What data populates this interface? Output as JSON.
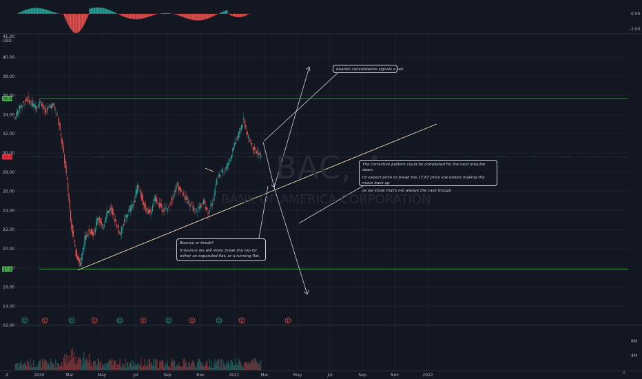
{
  "chart_data": {
    "type": "candlestick",
    "symbol": "BAC, 4",
    "company": "BANK OF AMERICA CORPORATION",
    "currency": "USD",
    "x_axis_labels": [
      "2020",
      "Mar",
      "May",
      "Jul",
      "Sep",
      "Nov",
      "2021",
      "Mar",
      "May",
      "Jul",
      "Sep",
      "Nov",
      "2022"
    ],
    "y_axis_labels": [
      "40.00",
      "38.00",
      "36.00",
      "34.00",
      "32.00",
      "30.00",
      "28.00",
      "26.00",
      "24.00",
      "22.00",
      "20.00",
      "18.00",
      "16.00",
      "14.00",
      "12.00"
    ],
    "ylim": [
      12,
      41
    ],
    "price_labels": [
      {
        "value": "35.68",
        "color": "#4caf50"
      },
      {
        "value": "29.60",
        "color": "#f23645"
      },
      {
        "value": "17.87",
        "color": "#4caf50"
      }
    ],
    "horizontal_levels": [
      35.68,
      17.87
    ],
    "earnings_dividend_markers": [
      "D",
      "E",
      "D",
      "E",
      "D",
      "E",
      "D",
      "E",
      "D",
      "E",
      "E"
    ],
    "oscillator_axis_labels": [
      "0.00",
      "-2.00"
    ],
    "volume_axis_labels": [
      "8M",
      "4M"
    ],
    "annotations": [
      "bearish consolidation signals a sell",
      "The corrective pattern could be completed for the next impulse down.",
      "I'd expect price to break the 17.87 price low before making the move back up",
      "as we know that's not always the case though",
      "Bounce or break?",
      "If bounce we will likely break the top for either an expanded flat, or a running flat."
    ],
    "price_series": [
      33.5,
      34.6,
      35.2,
      35.6,
      35.1,
      34.8,
      35.4,
      34.2,
      34.9,
      35.0,
      33.4,
      30.5,
      27.0,
      22.3,
      19.5,
      18.3,
      21.0,
      22.0,
      21.6,
      23.4,
      22.1,
      23.8,
      24.2,
      22.8,
      21.5,
      22.9,
      23.9,
      24.7,
      26.5,
      25.2,
      24.0,
      23.8,
      25.3,
      24.5,
      24.0,
      24.3,
      25.5,
      26.7,
      25.8,
      25.2,
      24.6,
      23.9,
      24.3,
      24.9,
      23.8,
      24.8,
      27.3,
      28.0,
      28.4,
      29.3,
      31.0,
      32.0,
      33.5,
      31.8,
      30.8,
      30.1,
      29.6
    ]
  },
  "labels": {
    "counter": "Z",
    "bottom_right": "A"
  },
  "colors": {
    "background": "#131722",
    "up": "#26a69a",
    "down": "#ef5350",
    "level_line": "#4caf50",
    "trend_line": "#f5deb3",
    "arrow": "#d1d4dc"
  }
}
